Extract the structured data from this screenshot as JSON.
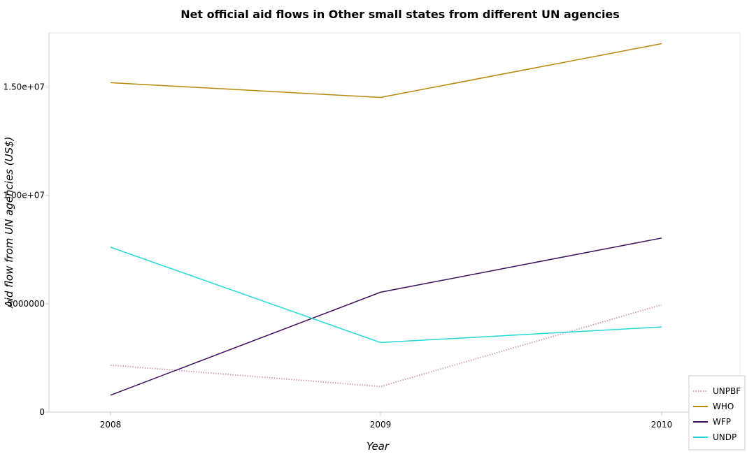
{
  "chart_data": {
    "type": "line",
    "title": "Net official aid flows in Other small states from different UN agencies",
    "xlabel": "Year",
    "ylabel": "Aid flow from UN agencies (US$)",
    "categories": [
      "2008",
      "2009",
      "2010"
    ],
    "ylim": [
      0,
      17500000
    ],
    "yticks": [
      0,
      5000000,
      10000000,
      15000000
    ],
    "ytick_labels": [
      "0",
      "5000000",
      "1.00e+07",
      "1.50e+07"
    ],
    "grid": false,
    "legend_position": "bottom-right",
    "series": [
      {
        "name": "UNPBF",
        "values": [
          2170000,
          1180000,
          4950000
        ],
        "color": "#d4a0b5",
        "dash": "dotted"
      },
      {
        "name": "WHO",
        "values": [
          15200000,
          14520000,
          17000000
        ],
        "color": "#b8860b",
        "dash": "solid"
      },
      {
        "name": "WFP",
        "values": [
          780000,
          5530000,
          8030000
        ],
        "color": "#3d0f5e",
        "dash": "solid"
      },
      {
        "name": "UNDP",
        "values": [
          7610000,
          3210000,
          3930000
        ],
        "color": "#22d8d8",
        "dash": "solid"
      }
    ]
  }
}
